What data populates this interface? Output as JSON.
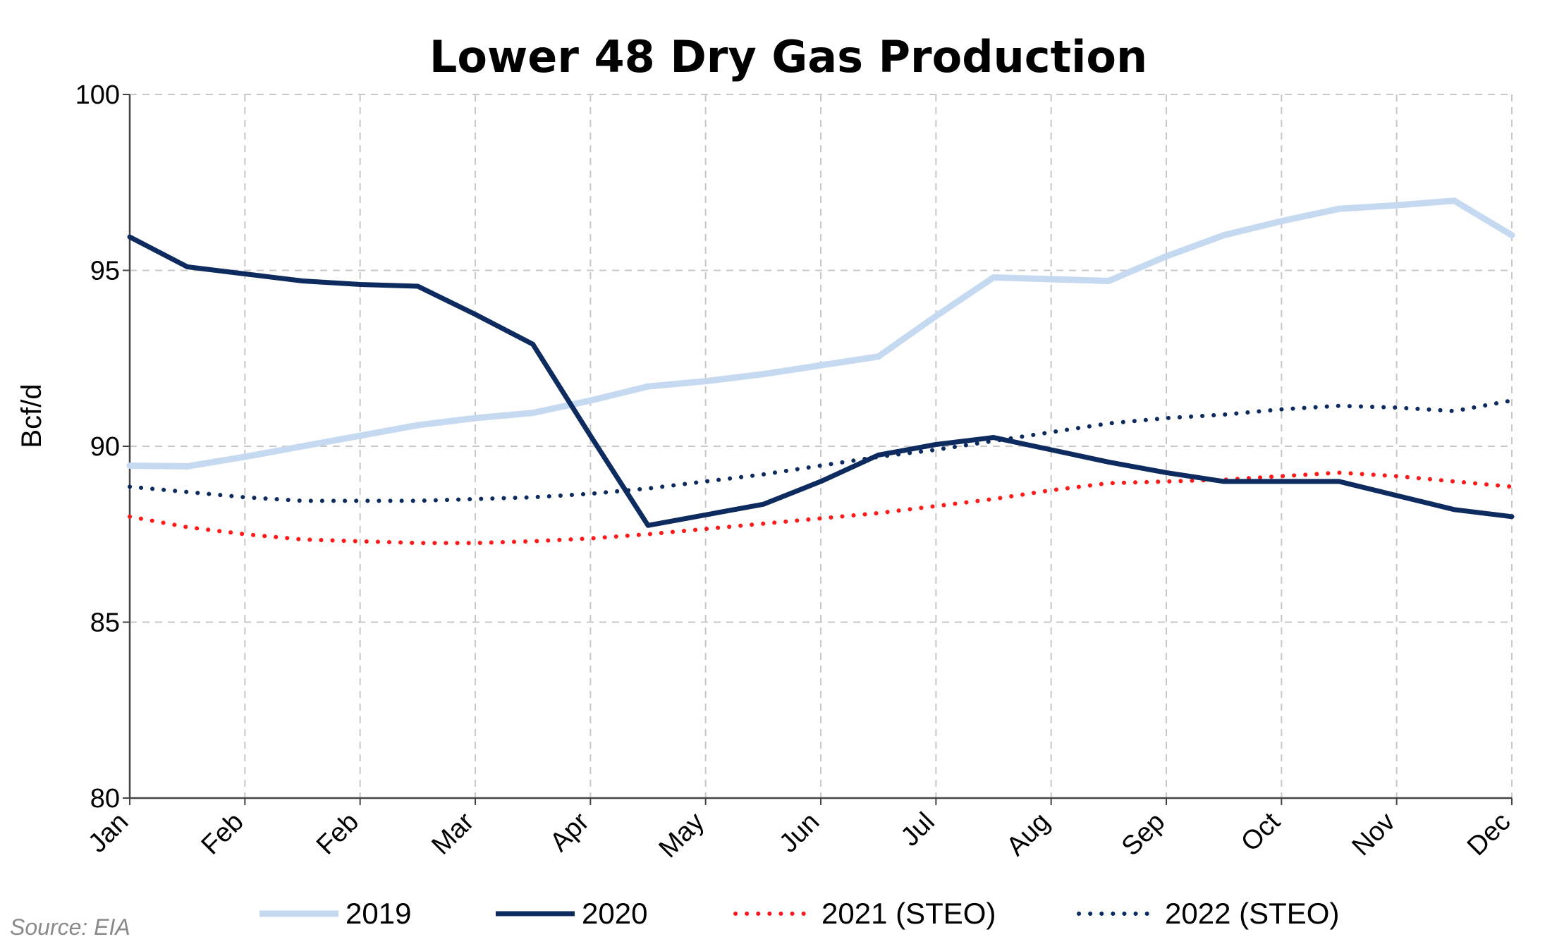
{
  "chart_data": {
    "type": "line",
    "title": "Lower 48 Dry Gas Production",
    "xlabel": "",
    "ylabel": "Bcf/d",
    "ylim": [
      80,
      100
    ],
    "yticks": [
      80,
      85,
      90,
      95,
      100
    ],
    "categories": [
      "Jan",
      "Feb",
      "Feb",
      "Mar",
      "Apr",
      "May",
      "Jun",
      "Jul",
      "Aug",
      "Sep",
      "Oct",
      "Nov",
      "Dec"
    ],
    "grid": true,
    "legend_position": "bottom",
    "x_points": [
      0,
      0.5,
      1,
      1.5,
      2,
      2.5,
      3,
      3.5,
      4,
      4.5,
      5,
      5.5,
      6,
      6.5,
      7,
      7.5,
      8,
      8.5,
      9,
      9.5,
      10,
      10.5,
      11,
      11.5,
      12
    ],
    "series": [
      {
        "name": "2019",
        "color": "#c5d9f1",
        "style": "solid",
        "x": [
          0,
          0.5,
          1,
          1.5,
          2,
          2.5,
          3,
          3.5,
          4,
          4.5,
          5,
          5.5,
          6,
          6.5,
          7,
          7.5,
          8,
          8.5,
          9,
          9.5,
          10,
          10.5,
          11,
          11.5,
          12
        ],
        "values": [
          89.45,
          89.43,
          89.7,
          90.0,
          90.3,
          90.6,
          90.8,
          90.95,
          91.3,
          91.7,
          91.85,
          92.05,
          92.3,
          92.55,
          93.7,
          94.8,
          94.75,
          94.7,
          95.4,
          96.0,
          96.4,
          96.75,
          96.85,
          96.98,
          96.0
        ]
      },
      {
        "name": "2020",
        "color": "#0d2b5e",
        "style": "solid",
        "x": [
          0,
          0.5,
          1,
          1.5,
          2,
          2.5,
          3,
          3.5,
          4,
          4.5,
          5,
          5.5,
          6,
          6.5,
          7,
          7.5,
          8,
          8.5,
          9,
          9.5,
          10,
          10.5,
          11,
          11.5,
          12
        ],
        "values": [
          95.95,
          95.1,
          94.9,
          94.7,
          94.6,
          94.55,
          93.75,
          92.9,
          90.3,
          87.75,
          88.05,
          88.35,
          89.0,
          89.75,
          90.05,
          90.25,
          89.9,
          89.55,
          89.25,
          89.0,
          89.0,
          89.0,
          88.6,
          88.2,
          88.0
        ]
      },
      {
        "name": "2021 (STEO)",
        "color": "#ff1a1a",
        "style": "dotted",
        "x": [
          0,
          0.5,
          1,
          1.5,
          2,
          2.5,
          3,
          3.5,
          4,
          4.5,
          5,
          5.5,
          6,
          6.5,
          7,
          7.5,
          8,
          8.5,
          9,
          9.5,
          10,
          10.5,
          11,
          11.5,
          12
        ],
        "values": [
          88.0,
          87.7,
          87.5,
          87.35,
          87.3,
          87.25,
          87.25,
          87.3,
          87.38,
          87.5,
          87.65,
          87.8,
          87.95,
          88.1,
          88.3,
          88.5,
          88.75,
          88.95,
          89.0,
          89.05,
          89.15,
          89.25,
          89.15,
          89.0,
          88.85
        ]
      },
      {
        "name": "2022 (STEO)",
        "color": "#0d2b5e",
        "style": "dotted",
        "x": [
          0,
          0.5,
          1,
          1.5,
          2,
          2.5,
          3,
          3.5,
          4,
          4.5,
          5,
          5.5,
          6,
          6.5,
          7,
          7.5,
          8,
          8.5,
          9,
          9.5,
          10,
          10.5,
          11,
          11.5,
          12
        ],
        "values": [
          88.85,
          88.7,
          88.55,
          88.45,
          88.45,
          88.45,
          88.5,
          88.55,
          88.65,
          88.8,
          89.0,
          89.2,
          89.45,
          89.7,
          89.9,
          90.15,
          90.4,
          90.65,
          90.8,
          90.9,
          91.05,
          91.15,
          91.1,
          91.0,
          91.3
        ]
      }
    ]
  },
  "legend": {
    "items": [
      {
        "label": "2019"
      },
      {
        "label": "2020"
      },
      {
        "label": "2021 (STEO)"
      },
      {
        "label": "2022 (STEO)"
      }
    ]
  },
  "source": "Source:  EIA"
}
